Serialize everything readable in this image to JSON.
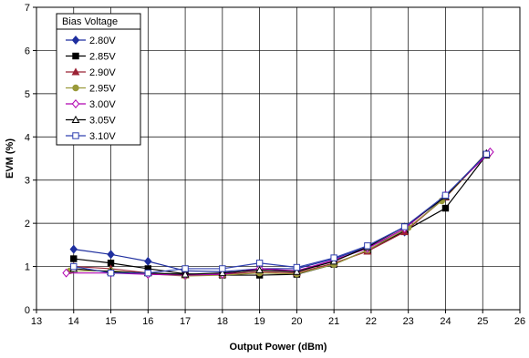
{
  "chart_data": {
    "type": "line",
    "title": "",
    "xlabel": "Output Power (dBm)",
    "ylabel": "EVM (%)",
    "xlim": [
      13,
      26
    ],
    "ylim": [
      0,
      7
    ],
    "xticks": [
      "13",
      "14",
      "15",
      "16",
      "17",
      "18",
      "19",
      "20",
      "21",
      "22",
      "23",
      "24",
      "25",
      "26"
    ],
    "yticks": [
      "0",
      "1",
      "2",
      "3",
      "4",
      "5",
      "6",
      "7"
    ],
    "grid": true,
    "legend": {
      "title": "Bias Voltage",
      "position": "top-left"
    },
    "series": [
      {
        "name": "2.80V",
        "color": "#1f2f9f",
        "marker": "diamond-filled",
        "x": [
          14.0,
          15.0,
          16.0,
          17.0,
          18.0,
          19.0,
          20.0,
          21.0,
          21.9,
          22.9,
          24.0,
          25.1
        ],
        "y": [
          1.4,
          1.28,
          1.12,
          0.9,
          0.88,
          0.95,
          0.95,
          1.18,
          1.45,
          1.8,
          2.62,
          3.6
        ]
      },
      {
        "name": "2.85V",
        "color": "#000000",
        "marker": "square-filled",
        "x": [
          14.0,
          15.0,
          16.0,
          17.0,
          18.0,
          19.0,
          20.0,
          21.0,
          21.9,
          22.9,
          24.0,
          25.1
        ],
        "y": [
          1.18,
          1.08,
          0.95,
          0.83,
          0.8,
          0.8,
          0.82,
          1.05,
          1.38,
          1.82,
          2.35,
          3.58
        ]
      },
      {
        "name": "2.90V",
        "color": "#9b2335",
        "marker": "triangle-filled",
        "x": [
          14.0,
          15.0,
          16.0,
          17.0,
          18.0,
          19.0,
          20.0,
          21.0,
          21.9,
          22.9,
          24.0,
          25.1
        ],
        "y": [
          1.0,
          0.95,
          0.85,
          0.8,
          0.82,
          0.88,
          0.85,
          1.08,
          1.35,
          1.8,
          2.6,
          3.6
        ]
      },
      {
        "name": "2.95V",
        "color": "#9a9a3a",
        "marker": "circle-filled",
        "x": [
          13.9,
          15.0,
          16.0,
          17.0,
          18.0,
          19.0,
          20.0,
          21.0,
          21.9,
          23.0,
          23.9,
          25.1
        ],
        "y": [
          0.9,
          0.9,
          0.83,
          0.78,
          0.8,
          0.85,
          0.83,
          1.05,
          1.38,
          1.9,
          2.52,
          3.6
        ]
      },
      {
        "name": "3.00V",
        "color": "#b000b0",
        "marker": "diamond-open",
        "x": [
          13.8,
          15.0,
          16.0,
          17.0,
          18.0,
          19.0,
          20.0,
          21.0,
          21.9,
          22.9,
          24.0,
          25.2
        ],
        "y": [
          0.85,
          0.85,
          0.82,
          0.8,
          0.82,
          0.95,
          0.9,
          1.15,
          1.42,
          1.88,
          2.65,
          3.65
        ]
      },
      {
        "name": "3.05V",
        "color": "#000000",
        "marker": "triangle-open",
        "x": [
          14.0,
          15.0,
          16.0,
          17.0,
          18.0,
          19.0,
          20.0,
          21.0,
          21.9,
          22.9,
          24.0,
          25.1
        ],
        "y": [
          0.95,
          0.88,
          0.85,
          0.82,
          0.85,
          0.92,
          0.88,
          1.12,
          1.45,
          1.92,
          2.62,
          3.62
        ]
      },
      {
        "name": "3.10V",
        "color": "#3040b0",
        "marker": "square-open",
        "x": [
          14.0,
          15.0,
          16.0,
          17.0,
          18.0,
          19.0,
          20.0,
          21.0,
          21.9,
          22.9,
          24.0,
          25.1
        ],
        "y": [
          1.0,
          0.85,
          0.85,
          0.95,
          0.95,
          1.08,
          0.98,
          1.2,
          1.48,
          1.92,
          2.65,
          3.6
        ]
      }
    ]
  }
}
